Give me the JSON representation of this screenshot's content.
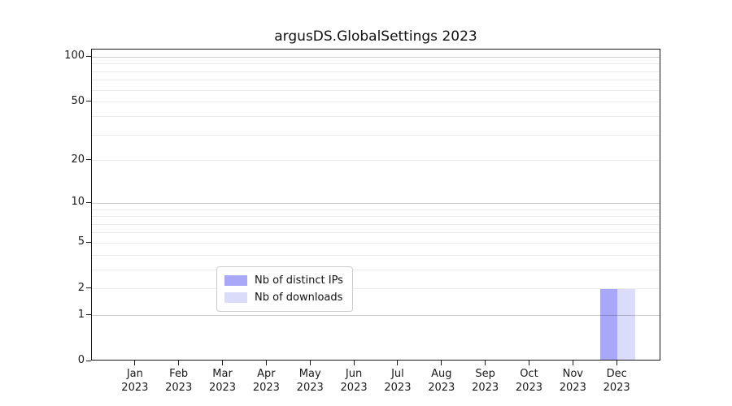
{
  "title": "argusDS.GlobalSettings 2023",
  "chart_data": {
    "type": "bar",
    "title": "argusDS.GlobalSettings 2023",
    "categories": [
      "Jan",
      "Feb",
      "Mar",
      "Apr",
      "May",
      "Jun",
      "Jul",
      "Aug",
      "Sep",
      "Oct",
      "Nov",
      "Dec"
    ],
    "category_year": "2023",
    "series": [
      {
        "name": "Nb of distinct IPs",
        "color": "#a9a7f8",
        "values": [
          0,
          0,
          0,
          0,
          0,
          0,
          0,
          0,
          0,
          0,
          0,
          2
        ]
      },
      {
        "name": "Nb of downloads",
        "color": "#dbdbfa",
        "values": [
          0,
          0,
          0,
          0,
          0,
          0,
          0,
          0,
          0,
          0,
          0,
          2
        ]
      }
    ],
    "xlabel": "",
    "ylabel": "",
    "y_scale": "log1p",
    "y_ticks": [
      0,
      1,
      2,
      5,
      10,
      20,
      50,
      100
    ],
    "y_major_gridlines": [
      1,
      10,
      100
    ],
    "y_minor_gridlines": [
      3,
      4,
      6,
      7,
      8,
      9,
      30,
      40,
      60,
      70,
      80,
      90
    ],
    "ylim": [
      0,
      112
    ],
    "xlim": [
      -1,
      12
    ],
    "grid": true,
    "legend": {
      "position": "lower center"
    }
  }
}
